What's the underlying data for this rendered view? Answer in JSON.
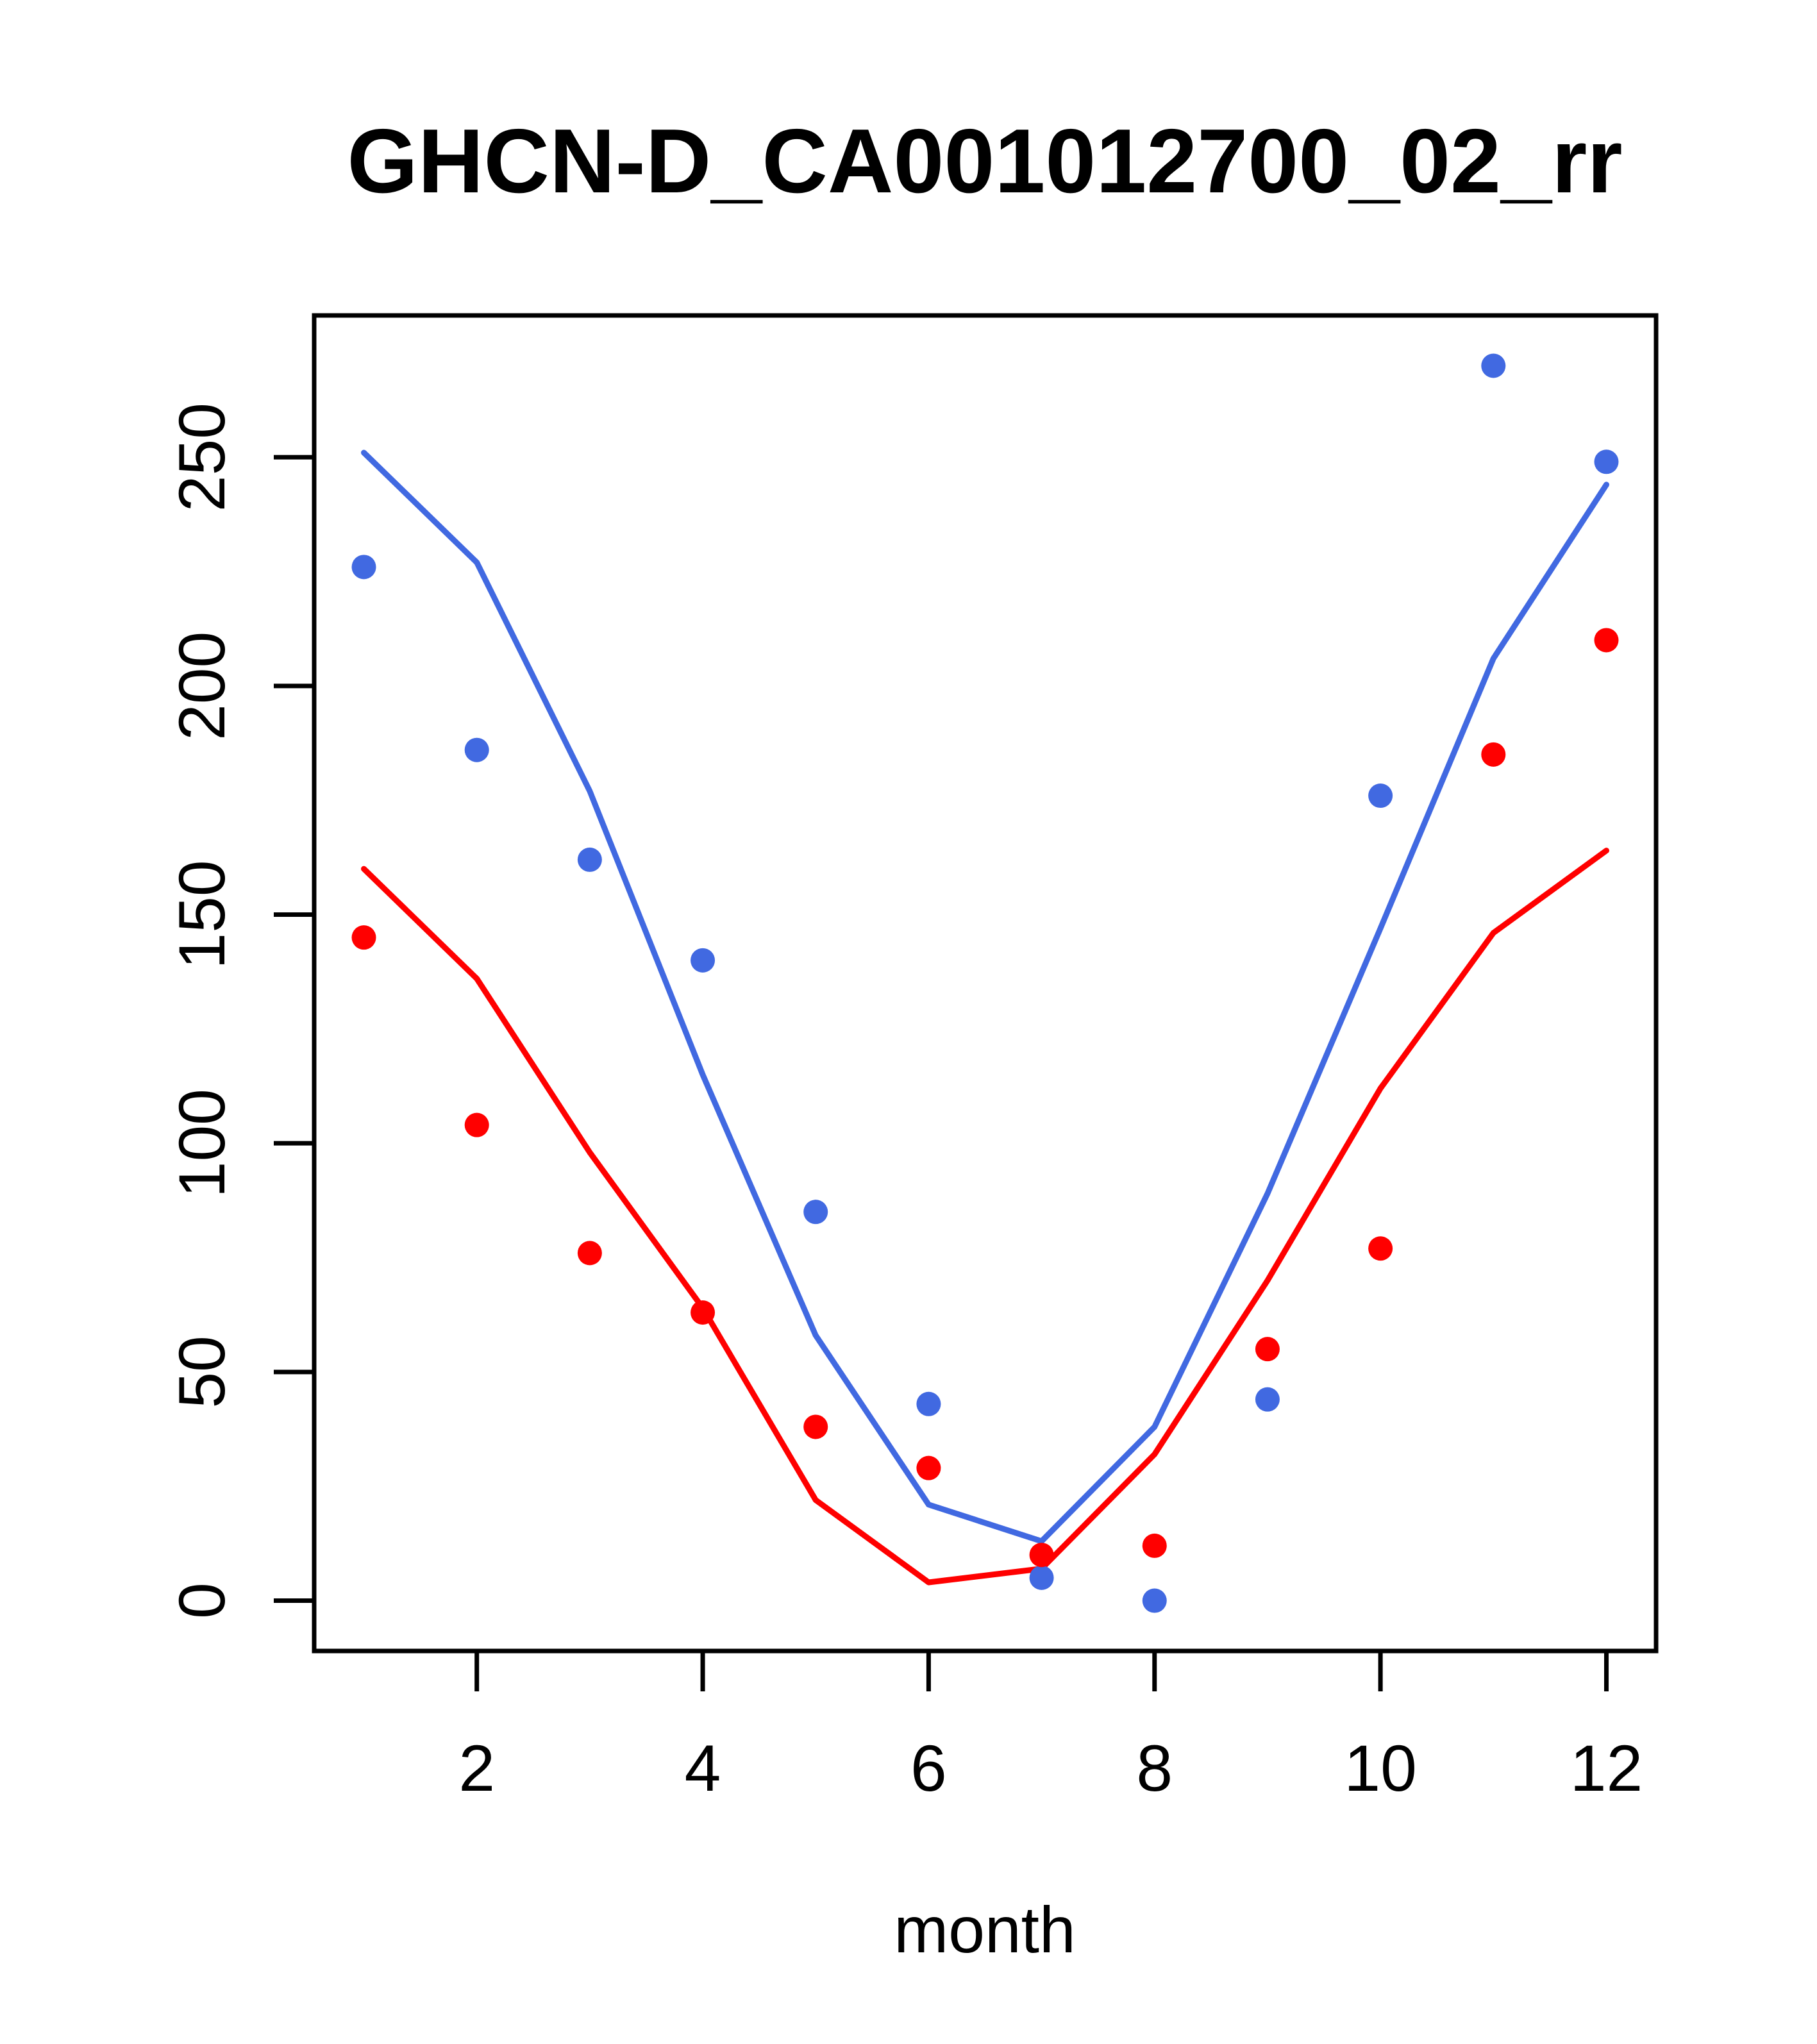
{
  "title": "GHCN-D_CA001012700_02_rr",
  "x_axis_label": "month",
  "colors": {
    "blue": "#4169E1",
    "red": "#FF0000",
    "axis": "#000000",
    "background": "#FFFFFF"
  },
  "chart_data": {
    "type": "scatter",
    "title": "GHCN-D_CA001012700_02_rr",
    "xlabel": "month",
    "ylabel": "",
    "x": [
      1,
      2,
      3,
      4,
      5,
      6,
      7,
      8,
      9,
      10,
      11,
      12
    ],
    "x_ticks": [
      2,
      4,
      6,
      8,
      10,
      12
    ],
    "y_ticks": [
      0,
      50,
      100,
      150,
      200,
      250
    ],
    "xlim": [
      0.56,
      12.44
    ],
    "ylim": [
      -11,
      281
    ],
    "grid": false,
    "legend_position": "none",
    "series": [
      {
        "name": "blue-observations",
        "type": "scatter",
        "color": "#4169E1",
        "marker": "filled-circle",
        "values": [
          226,
          186,
          162,
          140,
          85,
          43,
          5,
          0,
          44,
          176,
          270,
          249
        ]
      },
      {
        "name": "red-observations",
        "type": "scatter",
        "color": "#FF0000",
        "marker": "filled-circle",
        "values": [
          145,
          104,
          76,
          63,
          38,
          29,
          10,
          12,
          55,
          77,
          185,
          210
        ]
      },
      {
        "name": "blue-fit-line",
        "type": "line",
        "color": "#4169E1",
        "values": [
          251,
          227,
          177,
          115,
          58,
          21,
          13,
          38,
          89,
          147,
          206,
          244
        ]
      },
      {
        "name": "red-fit-line",
        "type": "line",
        "color": "#FF0000",
        "values": [
          160,
          136,
          98,
          64,
          22,
          4,
          7,
          32,
          70,
          112,
          146,
          164
        ]
      }
    ]
  }
}
